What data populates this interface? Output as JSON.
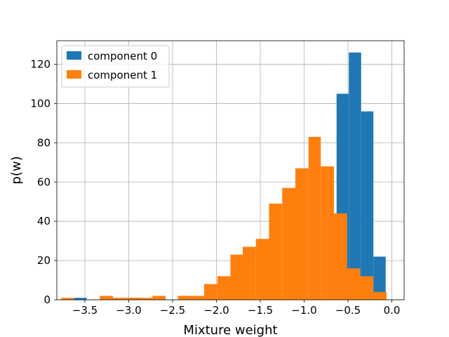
{
  "chart_data": {
    "type": "bar",
    "title": "",
    "xlabel": "Mixture weight",
    "ylabel": "p(w)",
    "xlim": [
      -3.82,
      0.14
    ],
    "ylim": [
      0,
      132
    ],
    "grid": true,
    "legend_position": "top-left",
    "xticks": [
      -3.5,
      -3.0,
      -2.5,
      -2.0,
      -1.5,
      -1.0,
      -0.5,
      0.0
    ],
    "xtick_labels": [
      "−3.5",
      "−3.0",
      "−2.5",
      "−2.0",
      "−1.5",
      "−1.0",
      "−0.5",
      "0.0"
    ],
    "yticks": [
      0,
      20,
      40,
      60,
      80,
      100,
      120
    ],
    "ytick_labels": [
      "0",
      "20",
      "40",
      "60",
      "80",
      "100",
      "120"
    ],
    "series": [
      {
        "name": "component 0",
        "color": "#1f77b4",
        "bins": [
          {
            "x0": -3.62,
            "x1": -3.48,
            "count": 1
          },
          {
            "x0": -3.02,
            "x1": -2.86,
            "count": 1
          },
          {
            "x0": -0.63,
            "x1": -0.49,
            "count": 105
          },
          {
            "x0": -0.49,
            "x1": -0.35,
            "count": 126
          },
          {
            "x0": -0.35,
            "x1": -0.21,
            "count": 96
          },
          {
            "x0": -0.21,
            "x1": -0.07,
            "count": 22
          }
        ]
      },
      {
        "name": "component 1",
        "color": "#ff7f0e",
        "bins": [
          {
            "x0": -3.77,
            "x1": -3.62,
            "count": 1
          },
          {
            "x0": -3.33,
            "x1": -3.18,
            "count": 2
          },
          {
            "x0": -3.18,
            "x1": -3.03,
            "count": 1
          },
          {
            "x0": -3.03,
            "x1": -2.88,
            "count": 1
          },
          {
            "x0": -2.88,
            "x1": -2.73,
            "count": 1
          },
          {
            "x0": -2.73,
            "x1": -2.58,
            "count": 2
          },
          {
            "x0": -2.44,
            "x1": -2.29,
            "count": 2
          },
          {
            "x0": -2.29,
            "x1": -2.14,
            "count": 2
          },
          {
            "x0": -2.14,
            "x1": -1.99,
            "count": 8
          },
          {
            "x0": -1.99,
            "x1": -1.84,
            "count": 12
          },
          {
            "x0": -1.84,
            "x1": -1.7,
            "count": 23
          },
          {
            "x0": -1.7,
            "x1": -1.55,
            "count": 27
          },
          {
            "x0": -1.55,
            "x1": -1.4,
            "count": 31
          },
          {
            "x0": -1.4,
            "x1": -1.25,
            "count": 49
          },
          {
            "x0": -1.25,
            "x1": -1.1,
            "count": 57
          },
          {
            "x0": -1.1,
            "x1": -0.95,
            "count": 67
          },
          {
            "x0": -0.95,
            "x1": -0.81,
            "count": 83
          },
          {
            "x0": -0.81,
            "x1": -0.66,
            "count": 68
          },
          {
            "x0": -0.66,
            "x1": -0.51,
            "count": 44
          },
          {
            "x0": -0.51,
            "x1": -0.36,
            "count": 16
          },
          {
            "x0": -0.36,
            "x1": -0.21,
            "count": 12
          },
          {
            "x0": -0.21,
            "x1": -0.06,
            "count": 4
          }
        ]
      }
    ]
  }
}
